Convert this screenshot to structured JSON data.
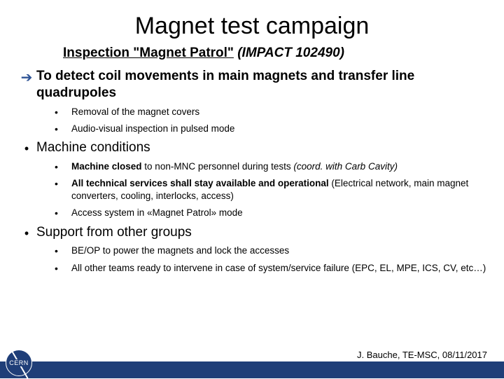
{
  "title": "Magnet test campaign",
  "subtitle_underlined": "Inspection \"Magnet Patrol\"",
  "subtitle_impact": "(IMPACT 102490)",
  "section1": {
    "heading": "To detect coil movements in main magnets and transfer line quadrupoles",
    "items": [
      {
        "text": "Removal of the magnet covers"
      },
      {
        "text": "Audio-visual inspection in pulsed mode"
      }
    ]
  },
  "section2": {
    "heading": "Machine conditions",
    "items": [
      {
        "html": "<b>Machine closed</b> to non-MNC personnel during tests <i>(coord. with Carb Cavity)</i>"
      },
      {
        "html": "<b>All technical services shall stay available and operational</b> (Electrical network, main magnet converters, cooling, interlocks, access)"
      },
      {
        "html": "Access system in «Magnet Patrol» mode"
      }
    ]
  },
  "section3": {
    "heading": "Support from other groups",
    "items": [
      {
        "text": "BE/OP to power the magnets and lock the accesses"
      },
      {
        "text": "All other teams ready to intervene in case of system/service failure (EPC, EL, MPE, ICS, CV, etc…)"
      }
    ]
  },
  "footer": "J. Bauche, TE-MSC, 08/11/2017",
  "logo_text": "CERN",
  "colors": {
    "arrow": "#2f5496",
    "footer_bar": "#1f3e78",
    "text": "#000000",
    "background": "#ffffff"
  }
}
